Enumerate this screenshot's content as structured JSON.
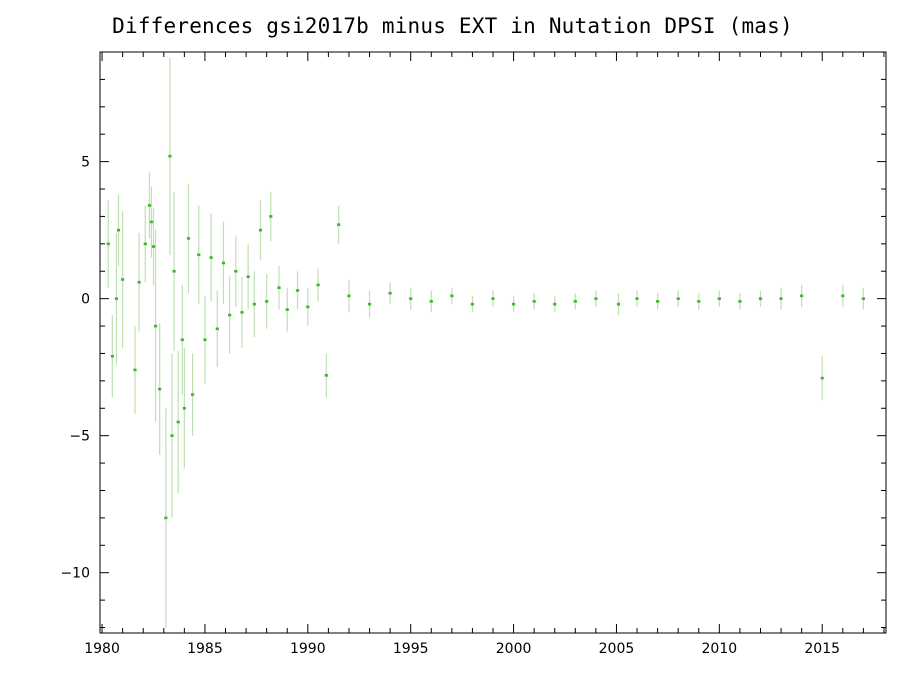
{
  "chart_data": {
    "type": "scatter",
    "title": "Differences gsi2017b minus EXT in Nutation DPSI (mas)",
    "xlabel": "",
    "ylabel": "",
    "xlim": [
      1979.9,
      2018.1
    ],
    "ylim": [
      -12.2,
      9.0
    ],
    "x_ticks": [
      1980,
      1985,
      1990,
      1995,
      2000,
      2005,
      2010,
      2015
    ],
    "x_tick_labels": [
      "1980",
      "1985",
      "1990",
      "1995",
      "2000",
      "2005",
      "2010",
      "2015"
    ],
    "y_ticks": [
      -10,
      -5,
      0,
      5
    ],
    "y_tick_labels": [
      "−10",
      "−5",
      "0",
      "5"
    ],
    "grid": false,
    "legend": "none",
    "colors": {
      "points": "#3cb82a",
      "error_bars": "#bfe0b3",
      "axes": "#000000"
    },
    "series": [
      {
        "values": [
          {
            "x": 1980.3,
            "y": 2.0,
            "err": 1.6
          },
          {
            "x": 1980.5,
            "y": -2.1,
            "err": 1.5
          },
          {
            "x": 1980.7,
            "y": 0.0,
            "err": 2.4
          },
          {
            "x": 1980.8,
            "y": 2.5,
            "err": 1.3
          },
          {
            "x": 1981.0,
            "y": 0.7,
            "err": 2.5
          },
          {
            "x": 1981.6,
            "y": -2.6,
            "err": 1.6
          },
          {
            "x": 1981.8,
            "y": 0.6,
            "err": 1.8
          },
          {
            "x": 1982.1,
            "y": 2.0,
            "err": 1.4
          },
          {
            "x": 1982.3,
            "y": 3.4,
            "err": 1.2
          },
          {
            "x": 1982.4,
            "y": 2.8,
            "err": 1.3
          },
          {
            "x": 1982.5,
            "y": 1.9,
            "err": 1.4
          },
          {
            "x": 1982.6,
            "y": -1.0,
            "err": 3.5
          },
          {
            "x": 1982.8,
            "y": -3.3,
            "err": 2.4
          },
          {
            "x": 1983.1,
            "y": -8.0,
            "err": 4.0
          },
          {
            "x": 1983.3,
            "y": 5.2,
            "err": 3.6
          },
          {
            "x": 1983.4,
            "y": -5.0,
            "err": 3.0
          },
          {
            "x": 1983.5,
            "y": 1.0,
            "err": 2.9
          },
          {
            "x": 1983.7,
            "y": -4.5,
            "err": 2.6
          },
          {
            "x": 1983.9,
            "y": -1.5,
            "err": 2.0
          },
          {
            "x": 1984.0,
            "y": -4.0,
            "err": 2.2
          },
          {
            "x": 1984.2,
            "y": 2.2,
            "err": 2.0
          },
          {
            "x": 1984.4,
            "y": -3.5,
            "err": 1.5
          },
          {
            "x": 1984.7,
            "y": 1.6,
            "err": 1.8
          },
          {
            "x": 1985.0,
            "y": -1.5,
            "err": 1.6
          },
          {
            "x": 1985.3,
            "y": 1.5,
            "err": 1.6
          },
          {
            "x": 1985.6,
            "y": -1.1,
            "err": 1.4
          },
          {
            "x": 1985.9,
            "y": 1.3,
            "err": 1.5
          },
          {
            "x": 1986.2,
            "y": -0.6,
            "err": 1.4
          },
          {
            "x": 1986.5,
            "y": 1.0,
            "err": 1.3
          },
          {
            "x": 1986.8,
            "y": -0.5,
            "err": 1.3
          },
          {
            "x": 1987.1,
            "y": 0.8,
            "err": 1.2
          },
          {
            "x": 1987.4,
            "y": -0.2,
            "err": 1.2
          },
          {
            "x": 1987.7,
            "y": 2.5,
            "err": 1.1
          },
          {
            "x": 1988.0,
            "y": -0.1,
            "err": 1.0
          },
          {
            "x": 1988.2,
            "y": 3.0,
            "err": 0.9
          },
          {
            "x": 1988.6,
            "y": 0.4,
            "err": 0.8
          },
          {
            "x": 1989.0,
            "y": -0.4,
            "err": 0.8
          },
          {
            "x": 1989.5,
            "y": 0.3,
            "err": 0.7
          },
          {
            "x": 1990.0,
            "y": -0.3,
            "err": 0.7
          },
          {
            "x": 1990.5,
            "y": 0.5,
            "err": 0.6
          },
          {
            "x": 1990.9,
            "y": -2.8,
            "err": 0.8
          },
          {
            "x": 1991.5,
            "y": 2.7,
            "err": 0.7
          },
          {
            "x": 1992.0,
            "y": 0.1,
            "err": 0.6
          },
          {
            "x": 1993.0,
            "y": -0.2,
            "err": 0.5
          },
          {
            "x": 1994.0,
            "y": 0.2,
            "err": 0.4
          },
          {
            "x": 1995.0,
            "y": 0.0,
            "err": 0.4
          },
          {
            "x": 1996.0,
            "y": -0.1,
            "err": 0.4
          },
          {
            "x": 1997.0,
            "y": 0.1,
            "err": 0.3
          },
          {
            "x": 1998.0,
            "y": -0.2,
            "err": 0.3
          },
          {
            "x": 1999.0,
            "y": 0.0,
            "err": 0.3
          },
          {
            "x": 2000.0,
            "y": -0.2,
            "err": 0.3
          },
          {
            "x": 2001.0,
            "y": -0.1,
            "err": 0.3
          },
          {
            "x": 2002.0,
            "y": -0.2,
            "err": 0.3
          },
          {
            "x": 2003.0,
            "y": -0.1,
            "err": 0.3
          },
          {
            "x": 2004.0,
            "y": 0.0,
            "err": 0.3
          },
          {
            "x": 2005.1,
            "y": -0.2,
            "err": 0.4
          },
          {
            "x": 2006.0,
            "y": 0.0,
            "err": 0.3
          },
          {
            "x": 2007.0,
            "y": -0.1,
            "err": 0.3
          },
          {
            "x": 2008.0,
            "y": 0.0,
            "err": 0.3
          },
          {
            "x": 2009.0,
            "y": -0.1,
            "err": 0.3
          },
          {
            "x": 2010.0,
            "y": 0.0,
            "err": 0.3
          },
          {
            "x": 2011.0,
            "y": -0.1,
            "err": 0.3
          },
          {
            "x": 2012.0,
            "y": 0.0,
            "err": 0.3
          },
          {
            "x": 2013.0,
            "y": 0.0,
            "err": 0.4
          },
          {
            "x": 2014.0,
            "y": 0.1,
            "err": 0.4
          },
          {
            "x": 2015.0,
            "y": -2.9,
            "err": 0.8
          },
          {
            "x": 2016.0,
            "y": 0.1,
            "err": 0.4
          },
          {
            "x": 2017.0,
            "y": 0.0,
            "err": 0.4
          }
        ]
      }
    ]
  }
}
